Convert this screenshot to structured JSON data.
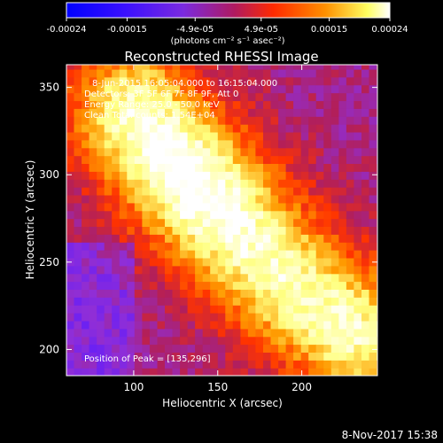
{
  "colorbar": {
    "ticks": [
      "-0.00024",
      "-0.00015",
      "-4.9e-05",
      "4.9e-05",
      "0.00015",
      "0.00024"
    ],
    "tick_values": [
      -0.00024,
      -0.00015,
      -4.9e-05,
      4.9e-05,
      0.00015,
      0.00024
    ],
    "range": [
      -0.00024,
      0.00024
    ],
    "units_label": "(photons cm⁻² s⁻¹ asec⁻²)"
  },
  "info": {
    "time_range": "8-Jun-2015 16:05:04.000 to 16:15:04.000",
    "detectors": "Detectors: 3F 5F 6F 7F 8F 9F, Att 0",
    "energy_range": "Energy Range: 25.0 - 50.0 keV",
    "method_counts": "Clean     Total counts: 1.54E+04",
    "peak": "Position of Peak = [135,296]"
  },
  "footer": {
    "date": "8-Nov-2017 15:38"
  },
  "colors": {
    "background": "#000000",
    "axes": "#ffffff",
    "colormap": [
      "#0000ff",
      "#5a1aff",
      "#8f2ed8",
      "#b21f5a",
      "#ff3300",
      "#ff9a00",
      "#ffff80",
      "#ffffff"
    ]
  },
  "chart_data": {
    "type": "heatmap",
    "title": "Reconstructed RHESSI Image",
    "xlabel": "Heliocentric X (arcsec)",
    "ylabel": "Heliocentric Y (arcsec)",
    "xlim": [
      60,
      245
    ],
    "ylim": [
      185,
      363
    ],
    "xticks": [
      100,
      150,
      200
    ],
    "yticks": [
      200,
      250,
      300,
      350
    ],
    "peak": {
      "x": 135,
      "y": 296
    },
    "emission_ridge": {
      "description_points": [
        [
          100,
          335
        ],
        [
          135,
          296
        ],
        [
          190,
          240
        ],
        [
          230,
          210
        ]
      ],
      "width_arcsec": 28
    }
  }
}
